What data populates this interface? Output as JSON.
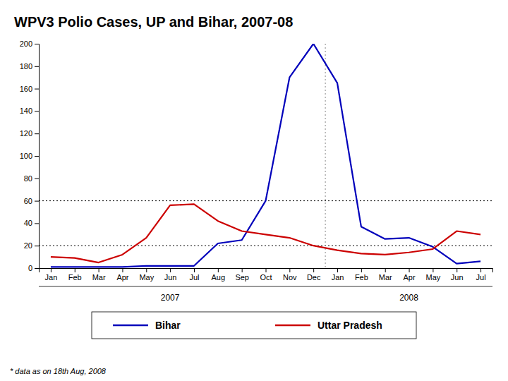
{
  "chart_data": {
    "type": "line",
    "title": "WPV3 Polio Cases, UP and Bihar, 2007-08",
    "footnote": "* data as on 18th Aug, 2008",
    "categories": [
      "Jan",
      "Feb",
      "Mar",
      "Apr",
      "May",
      "Jun",
      "Jul",
      "Aug",
      "Sep",
      "Oct",
      "Nov",
      "Dec",
      "Jan",
      "Feb",
      "Mar",
      "Apr",
      "May",
      "Jun",
      "Jul"
    ],
    "series": [
      {
        "name": "Bihar",
        "color": "#0000BB",
        "values": [
          1,
          1,
          1,
          1,
          2,
          2,
          2,
          22,
          25,
          60,
          170,
          200,
          165,
          37,
          26,
          27,
          19,
          4,
          6
        ]
      },
      {
        "name": "Uttar Pradesh",
        "color": "#CC0000",
        "values": [
          10,
          9,
          5,
          12,
          27,
          56,
          57,
          42,
          33,
          30,
          27,
          20,
          16,
          13,
          12,
          14,
          17,
          33,
          30
        ]
      }
    ],
    "year_groups": [
      {
        "label": "2007",
        "from": 0,
        "to": 10
      },
      {
        "label": "2008",
        "from": 12,
        "to": 18
      }
    ],
    "dividers": [
      11.5
    ],
    "reference_lines": [
      60,
      20
    ],
    "ylim": [
      0,
      200
    ],
    "yticks": [
      0,
      20,
      40,
      60,
      80,
      100,
      120,
      140,
      160,
      180,
      200
    ],
    "grid": false,
    "legend": "bottom"
  }
}
